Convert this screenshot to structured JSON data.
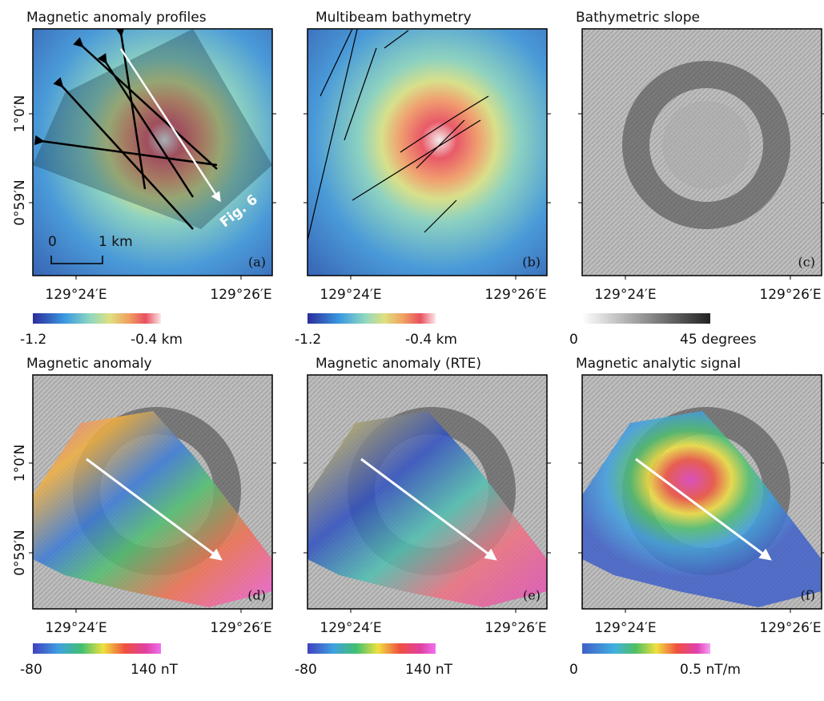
{
  "panels": [
    {
      "title": "Magnetic anomaly profiles",
      "label": "(a)",
      "x_labels": [
        "129°24′E",
        "129°26′E"
      ],
      "y_labels": [
        "1°0′N",
        "0°59′N"
      ],
      "colorbar": {
        "min_label": "-1.2",
        "max_label": "-0.4 km"
      },
      "scale_bar": {
        "start": "0",
        "end": "1 km"
      },
      "annotation": "Fig. 6"
    },
    {
      "title": "Multibeam bathymetry",
      "label": "(b)",
      "x_labels": [
        "129°24′E",
        "129°26′E"
      ],
      "colorbar": {
        "min_label": "-1.2",
        "max_label": "-0.4 km"
      }
    },
    {
      "title": "Bathymetric slope",
      "label": "(c)",
      "x_labels": [
        "129°24′E",
        "129°26′E"
      ],
      "colorbar": {
        "min_label": "0",
        "max_label": "45 degrees"
      }
    },
    {
      "title": "Magnetic anomaly",
      "label": "(d)",
      "x_labels": [
        "129°24′E",
        "129°26′E"
      ],
      "y_labels": [
        "1°0′N",
        "0°59′N"
      ],
      "colorbar": {
        "min_label": "-80",
        "max_label": "140 nT"
      }
    },
    {
      "title": "Magnetic anomaly (RTE)",
      "label": "(e)",
      "x_labels": [
        "129°24′E",
        "129°26′E"
      ],
      "colorbar": {
        "min_label": "-80",
        "max_label": "140 nT"
      }
    },
    {
      "title": "Magnetic analytic signal",
      "label": "(f)",
      "x_labels": [
        "129°24′E",
        "129°26′E"
      ],
      "colorbar": {
        "min_label": "0",
        "max_label": "0.5 nT/m"
      }
    }
  ]
}
